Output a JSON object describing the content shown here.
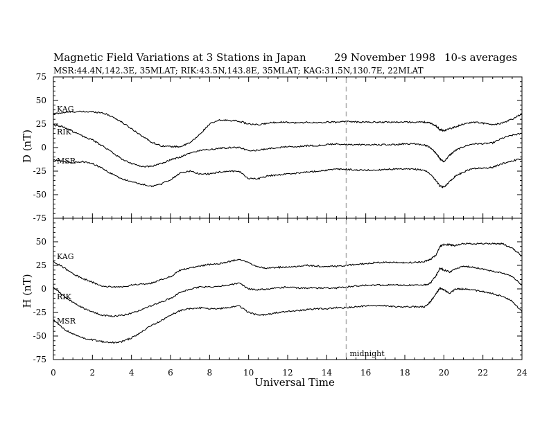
{
  "chart_data": {
    "type": "line",
    "title": "Magnetic Field Variations at 3 Stations in Japan",
    "date": "29 November 1998",
    "note": "10-s averages",
    "subtitle": "MSR:44.4N,142.3E, 35MLAT;  RIK:43.5N,143.8E, 35MLAT;  KAG:31.5N,130.7E, 22MLAT",
    "xlabel": "Universal Time",
    "xlim": [
      0,
      24
    ],
    "xticks": [
      0,
      2,
      4,
      6,
      8,
      10,
      12,
      14,
      16,
      18,
      20,
      22,
      24
    ],
    "marker": {
      "x": 15,
      "label": "midnight"
    },
    "panels": [
      {
        "ylabel": "D (nT)",
        "ylim": [
          -75,
          75
        ],
        "yticks": [
          75,
          50,
          25,
          0,
          -25,
          -50,
          -75
        ],
        "series": [
          {
            "name": "KAG",
            "x": [
              0,
              0.5,
              1,
              1.5,
              2,
              2.5,
              3,
              3.5,
              4,
              4.5,
              5,
              5.5,
              6,
              6.5,
              7,
              7.5,
              8,
              8.5,
              9,
              9.5,
              10,
              10.5,
              11,
              11.5,
              12,
              12.5,
              13,
              13.5,
              14,
              14.5,
              15,
              15.5,
              16,
              16.5,
              17,
              17.5,
              18,
              18.5,
              19,
              19.3,
              19.6,
              19.8,
              20,
              20.3,
              20.6,
              21,
              21.5,
              22,
              22.5,
              23,
              23.5,
              24
            ],
            "y": [
              36,
              37,
              38,
              38,
              38,
              37,
              33,
              27,
              20,
              13,
              6,
              2,
              1,
              1,
              5,
              14,
              25,
              29,
              29,
              28,
              25,
              24,
              26,
              27,
              27,
              26,
              27,
              26,
              27,
              27,
              28,
              27,
              27,
              27,
              27,
              27,
              27,
              27,
              27,
              26,
              23,
              19,
              18,
              20,
              22,
              25,
              27,
              26,
              24,
              26,
              30,
              36
            ]
          },
          {
            "name": "RIK",
            "x": [
              0,
              0.5,
              1,
              1.5,
              2,
              2.5,
              3,
              3.5,
              4,
              4.5,
              5,
              5.5,
              6,
              6.5,
              7,
              7.5,
              8,
              8.5,
              9,
              9.5,
              10,
              10.5,
              11,
              11.5,
              12,
              12.5,
              13,
              13.5,
              14,
              14.5,
              15,
              15.5,
              16,
              16.5,
              17,
              17.5,
              18,
              18.5,
              19,
              19.3,
              19.6,
              19.8,
              20,
              20.3,
              20.6,
              21,
              21.5,
              22,
              22.5,
              23,
              23.5,
              24
            ],
            "y": [
              24,
              22,
              17,
              12,
              8,
              2,
              -5,
              -12,
              -17,
              -20,
              -20,
              -17,
              -13,
              -10,
              -6,
              -3,
              -2,
              -1,
              0,
              0,
              -3,
              -3,
              -1,
              0,
              1,
              1,
              2,
              2,
              3,
              4,
              3,
              3,
              3,
              3,
              3,
              3,
              4,
              4,
              3,
              0,
              -6,
              -12,
              -15,
              -8,
              -3,
              1,
              4,
              4,
              5,
              10,
              13,
              15
            ]
          },
          {
            "name": "MSR",
            "x": [
              0,
              0.5,
              1,
              1.5,
              2,
              2.5,
              3,
              3.5,
              4,
              4.5,
              5,
              5.5,
              6,
              6.5,
              7,
              7.5,
              8,
              8.5,
              9,
              9.5,
              10,
              10.5,
              11,
              11.5,
              12,
              12.5,
              13,
              13.5,
              14,
              14.5,
              15,
              15.5,
              16,
              16.5,
              17,
              17.5,
              18,
              18.5,
              19,
              19.3,
              19.6,
              19.8,
              20,
              20.3,
              20.6,
              21,
              21.5,
              22,
              22.5,
              23,
              23.5,
              24
            ],
            "y": [
              -13,
              -15,
              -16,
              -15,
              -17,
              -22,
              -28,
              -33,
              -36,
              -39,
              -41,
              -39,
              -34,
              -27,
              -25,
              -28,
              -28,
              -26,
              -25,
              -25,
              -33,
              -33,
              -30,
              -29,
              -28,
              -27,
              -26,
              -25,
              -24,
              -23,
              -23,
              -24,
              -24,
              -24,
              -23,
              -23,
              -23,
              -23,
              -24,
              -28,
              -35,
              -41,
              -42,
              -36,
              -30,
              -26,
              -22,
              -22,
              -21,
              -17,
              -14,
              -12
            ]
          }
        ]
      },
      {
        "ylabel": "H (nT)",
        "ylim": [
          -75,
          75
        ],
        "yticks": [
          50,
          25,
          0,
          -25,
          -50,
          -75
        ],
        "series": [
          {
            "name": "KAG",
            "x": [
              0,
              0.5,
              1,
              1.5,
              2,
              2.5,
              3,
              3.5,
              4,
              4.5,
              5,
              5.5,
              6,
              6.5,
              7,
              7.5,
              8,
              8.5,
              9,
              9.5,
              10,
              10.5,
              11,
              11.5,
              12,
              12.5,
              13,
              13.5,
              14,
              14.5,
              15,
              15.5,
              16,
              16.5,
              17,
              17.5,
              18,
              18.5,
              19,
              19.3,
              19.6,
              19.8,
              20,
              20.3,
              20.6,
              21,
              21.5,
              22,
              22.5,
              23,
              23.5,
              24
            ],
            "y": [
              29,
              23,
              16,
              11,
              7,
              3,
              2,
              2,
              4,
              5,
              6,
              10,
              13,
              20,
              22,
              24,
              26,
              27,
              29,
              31,
              28,
              23,
              22,
              23,
              23,
              24,
              25,
              24,
              24,
              24,
              25,
              26,
              27,
              28,
              28,
              28,
              28,
              28,
              29,
              31,
              36,
              45,
              47,
              47,
              46,
              48,
              48,
              48,
              48,
              48,
              43,
              35
            ]
          },
          {
            "name": "RIK",
            "x": [
              0,
              0.5,
              1,
              1.5,
              2,
              2.5,
              3,
              3.5,
              4,
              4.5,
              5,
              5.5,
              6,
              6.5,
              7,
              7.5,
              8,
              8.5,
              9,
              9.5,
              10,
              10.5,
              11,
              11.5,
              12,
              12.5,
              13,
              13.5,
              14,
              14.5,
              15,
              15.5,
              16,
              16.5,
              17,
              17.5,
              18,
              18.5,
              19,
              19.3,
              19.6,
              19.8,
              20,
              20.3,
              20.6,
              21,
              21.5,
              22,
              22.5,
              23,
              23.5,
              24
            ],
            "y": [
              2,
              -7,
              -14,
              -20,
              -24,
              -28,
              -29,
              -28,
              -26,
              -22,
              -18,
              -14,
              -10,
              -4,
              0,
              2,
              2,
              3,
              4,
              6,
              0,
              -1,
              0,
              1,
              2,
              1,
              1,
              1,
              1,
              1,
              2,
              3,
              4,
              4,
              4,
              4,
              4,
              4,
              4,
              6,
              14,
              22,
              20,
              18,
              21,
              24,
              23,
              21,
              19,
              17,
              13,
              4
            ]
          },
          {
            "name": "MSR",
            "x": [
              0,
              0.5,
              1,
              1.5,
              2,
              2.5,
              3,
              3.5,
              4,
              4.5,
              5,
              5.5,
              6,
              6.5,
              7,
              7.5,
              8,
              8.5,
              9,
              9.5,
              10,
              10.5,
              11,
              11.5,
              12,
              12.5,
              13,
              13.5,
              14,
              14.5,
              15,
              15.5,
              16,
              16.5,
              17,
              17.5,
              18,
              18.5,
              19,
              19.3,
              19.6,
              19.8,
              20,
              20.3,
              20.6,
              21,
              21.5,
              22,
              22.5,
              23,
              23.5,
              24
            ],
            "y": [
              -33,
              -42,
              -48,
              -52,
              -54,
              -56,
              -57,
              -56,
              -52,
              -46,
              -39,
              -34,
              -28,
              -23,
              -21,
              -20,
              -21,
              -21,
              -20,
              -18,
              -25,
              -28,
              -27,
              -25,
              -24,
              -23,
              -22,
              -21,
              -21,
              -20,
              -20,
              -19,
              -18,
              -18,
              -18,
              -19,
              -19,
              -19,
              -19,
              -14,
              -5,
              1,
              -1,
              -5,
              0,
              0,
              -1,
              -3,
              -5,
              -8,
              -13,
              -24
            ]
          }
        ]
      }
    ]
  }
}
